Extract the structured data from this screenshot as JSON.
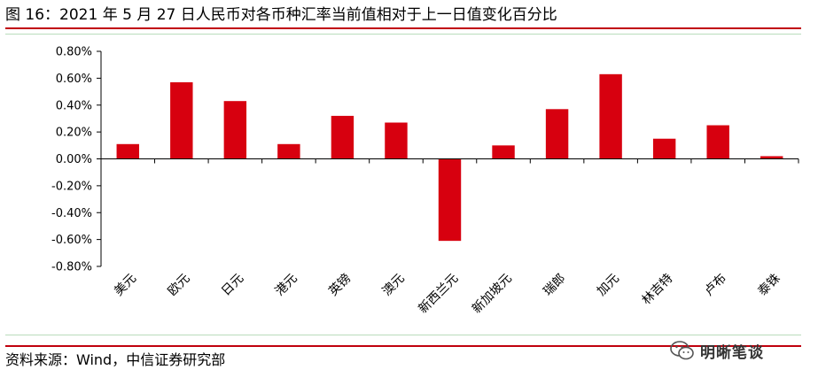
{
  "header": {
    "title": "图 16：2021 年 5 月 27 日人民币对各币种汇率当前值相对于上一日值变化百分比"
  },
  "footer": {
    "source": "资料来源：Wind，中信证券研究部",
    "brand": "明晰笔谈",
    "brand_icon": "wechat-icon"
  },
  "colors": {
    "accent": "#c0000d",
    "bar": "#d7000f",
    "divider_green": "#b9dcbc"
  },
  "chart_data": {
    "type": "bar",
    "title": "",
    "xlabel": "",
    "ylabel": "",
    "categories": [
      "美元",
      "欧元",
      "日元",
      "港元",
      "英镑",
      "澳元",
      "新西兰元",
      "新加坡元",
      "瑞郎",
      "加元",
      "林吉特",
      "卢布",
      "泰铢"
    ],
    "values": [
      0.11,
      0.57,
      0.43,
      0.11,
      0.32,
      0.27,
      -0.61,
      0.1,
      0.37,
      0.63,
      0.15,
      0.25,
      0.02
    ],
    "value_unit": "%",
    "ylim": [
      -0.8,
      0.8
    ],
    "yticks": [
      "0.80%",
      "0.60%",
      "0.40%",
      "0.20%",
      "0.00%",
      "-0.20%",
      "-0.40%",
      "-0.60%",
      "-0.80%"
    ],
    "grid": false,
    "legend": "none"
  }
}
